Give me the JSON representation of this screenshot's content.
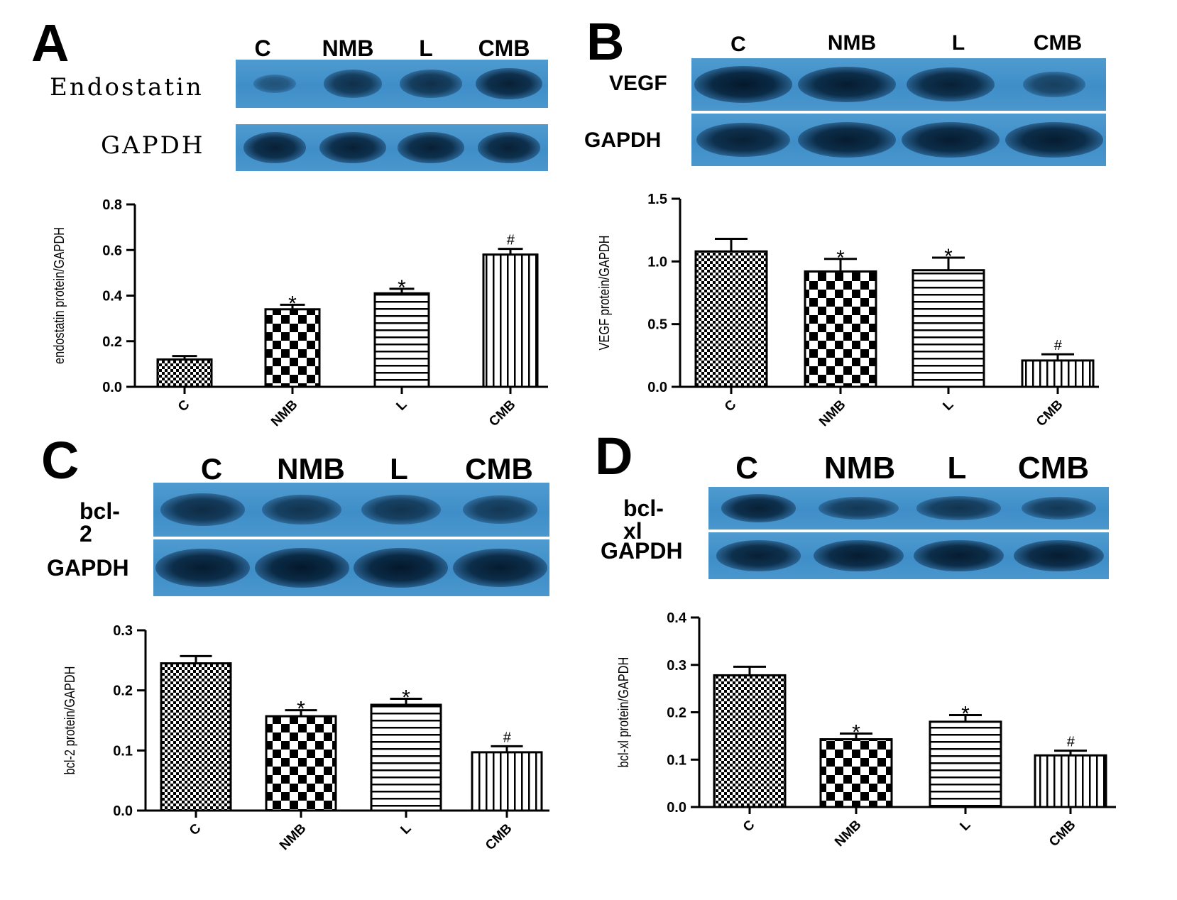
{
  "panels": [
    {
      "letter": "A",
      "lanes": [
        "C",
        "NMB",
        "L",
        "CMB"
      ],
      "blot_rows": [
        {
          "label": "Endostatin",
          "intensity": [
            0.25,
            0.7,
            0.7,
            0.9
          ],
          "width": [
            0.55,
            0.75,
            0.8,
            0.85
          ]
        },
        {
          "label": "GAPDH",
          "intensity": [
            0.9,
            0.9,
            0.9,
            0.9
          ],
          "width": [
            0.8,
            0.85,
            0.85,
            0.8
          ]
        }
      ]
    },
    {
      "letter": "B",
      "lanes": [
        "C",
        "NMB",
        "L",
        "CMB"
      ],
      "blot_rows": [
        {
          "label": "VEGF",
          "intensity": [
            1.0,
            0.95,
            0.9,
            0.5
          ],
          "width": [
            0.95,
            0.95,
            0.85,
            0.6
          ]
        },
        {
          "label": "GAPDH",
          "intensity": [
            0.9,
            0.95,
            0.95,
            0.95
          ],
          "width": [
            0.9,
            0.95,
            0.95,
            0.95
          ]
        }
      ]
    },
    {
      "letter": "C",
      "lanes": [
        "C",
        "NMB",
        "L",
        "CMB"
      ],
      "blot_rows": [
        {
          "label": "bcl-2",
          "intensity": [
            0.75,
            0.65,
            0.65,
            0.6
          ],
          "width": [
            0.85,
            0.8,
            0.8,
            0.75
          ]
        },
        {
          "label": "GAPDH",
          "intensity": [
            0.95,
            1.0,
            1.0,
            0.95
          ],
          "width": [
            0.95,
            0.95,
            0.95,
            0.95
          ]
        }
      ]
    },
    {
      "letter": "D",
      "lanes": [
        "C",
        "NMB",
        "L",
        "CMB"
      ],
      "blot_rows": [
        {
          "label": "bcl-xl",
          "intensity": [
            0.9,
            0.6,
            0.65,
            0.6
          ],
          "width": [
            0.75,
            0.8,
            0.85,
            0.75
          ]
        },
        {
          "label": "GAPDH",
          "intensity": [
            0.9,
            0.95,
            0.95,
            0.95
          ],
          "width": [
            0.85,
            0.9,
            0.9,
            0.9
          ]
        }
      ]
    }
  ],
  "chart_data": [
    {
      "type": "bar",
      "categories": [
        "C",
        "NMB",
        "L",
        "CMB"
      ],
      "values": [
        0.12,
        0.34,
        0.41,
        0.58
      ],
      "errors": [
        0.015,
        0.02,
        0.02,
        0.025
      ],
      "annotations": [
        "",
        "*",
        "*",
        "#"
      ],
      "patterns": [
        "fine-check",
        "checker",
        "hlines",
        "vlines"
      ],
      "ylabel": "endostatin protein/GAPDH",
      "ylim": [
        0,
        0.8
      ],
      "yticks": [
        "0.0",
        "0.2",
        "0.4",
        "0.6",
        "0.8"
      ],
      "ytick_values": [
        0,
        0.2,
        0.4,
        0.6,
        0.8
      ]
    },
    {
      "type": "bar",
      "categories": [
        "C",
        "NMB",
        "L",
        "CMB"
      ],
      "values": [
        1.08,
        0.92,
        0.93,
        0.21
      ],
      "errors": [
        0.1,
        0.1,
        0.1,
        0.05
      ],
      "annotations": [
        "",
        "*",
        "*",
        "#"
      ],
      "patterns": [
        "fine-check",
        "checker",
        "hlines",
        "vlines"
      ],
      "ylabel": "VEGF protein/GAPDH",
      "ylim": [
        0,
        1.5
      ],
      "yticks": [
        "0.0",
        "0.5",
        "1.0",
        "1.5"
      ],
      "ytick_values": [
        0,
        0.5,
        1.0,
        1.5
      ]
    },
    {
      "type": "bar",
      "categories": [
        "C",
        "NMB",
        "L",
        "CMB"
      ],
      "values": [
        0.245,
        0.157,
        0.176,
        0.097
      ],
      "errors": [
        0.012,
        0.01,
        0.01,
        0.01
      ],
      "annotations": [
        "",
        "*",
        "*",
        "#"
      ],
      "patterns": [
        "fine-check",
        "checker",
        "hlines",
        "vlines"
      ],
      "ylabel": "bcl-2 protein/GAPDH",
      "ylim": [
        0,
        0.3
      ],
      "yticks": [
        "0.0",
        "0.1",
        "0.2",
        "0.3"
      ],
      "ytick_values": [
        0,
        0.1,
        0.2,
        0.3
      ]
    },
    {
      "type": "bar",
      "categories": [
        "C",
        "NMB",
        "L",
        "CMB"
      ],
      "values": [
        0.278,
        0.143,
        0.18,
        0.109
      ],
      "errors": [
        0.018,
        0.012,
        0.014,
        0.01
      ],
      "annotations": [
        "",
        "*",
        "*",
        "#"
      ],
      "patterns": [
        "fine-check",
        "checker",
        "hlines",
        "vlines"
      ],
      "ylabel": "bcl-xl protein/GAPDH",
      "ylim": [
        0,
        0.4
      ],
      "yticks": [
        "0.0",
        "0.1",
        "0.2",
        "0.3",
        "0.4"
      ],
      "ytick_values": [
        0,
        0.1,
        0.2,
        0.3,
        0.4
      ]
    }
  ]
}
